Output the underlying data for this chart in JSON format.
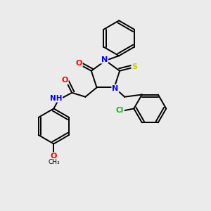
{
  "bg_color": "#ebebeb",
  "bond_color": "#000000",
  "atom_colors": {
    "N": "#0000ff",
    "O": "#ff0000",
    "S": "#cccc00",
    "Cl": "#00bb00",
    "C": "#000000",
    "H": "#708090"
  }
}
